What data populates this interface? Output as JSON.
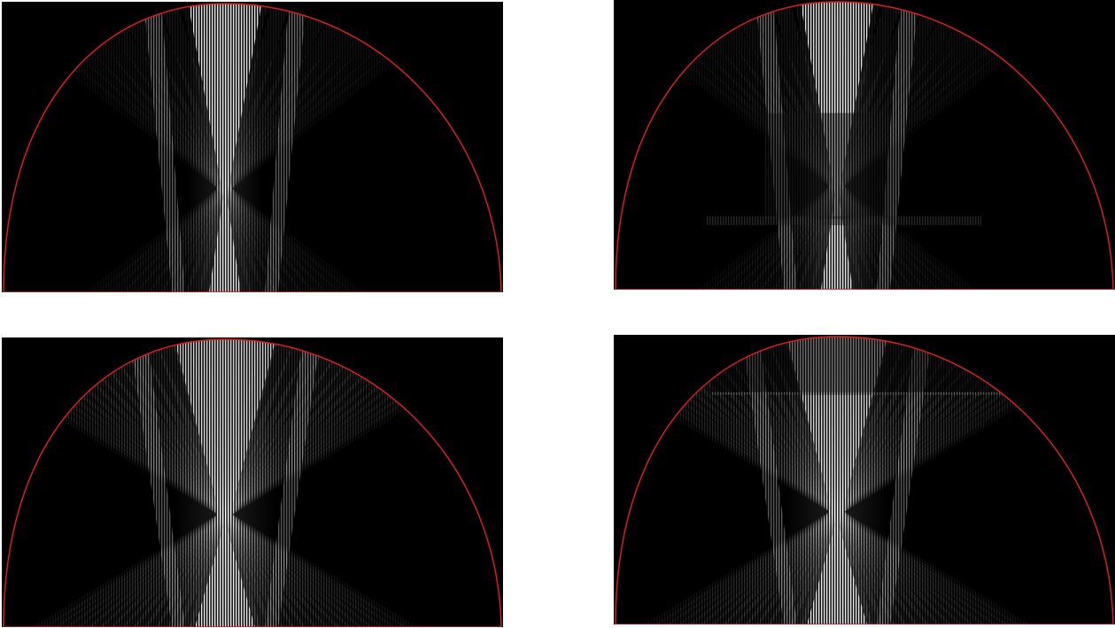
{
  "colors": {
    "background": "#000000",
    "boundary": "#d91e1e",
    "pattern": "#ffffff",
    "page": "#ffffff"
  },
  "panels": [
    {
      "id": "p1",
      "pattern": "clean-narrow-beam"
    },
    {
      "id": "p2",
      "pattern": "blocky-narrow-beam"
    },
    {
      "id": "p3",
      "pattern": "clean-wide-beam"
    },
    {
      "id": "p4",
      "pattern": "blocky-wide-beam"
    }
  ]
}
